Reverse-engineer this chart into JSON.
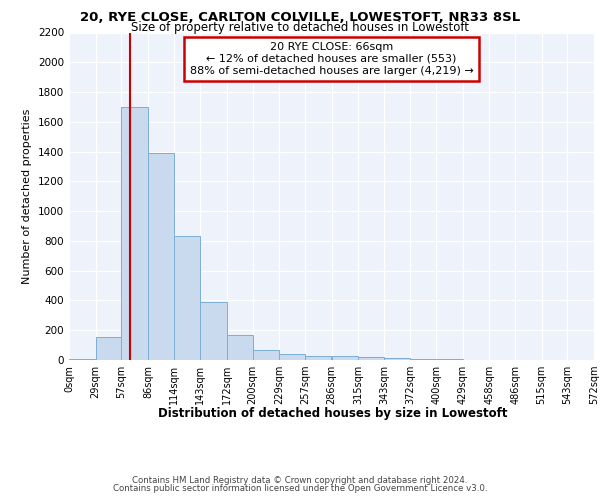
{
  "title1": "20, RYE CLOSE, CARLTON COLVILLE, LOWESTOFT, NR33 8SL",
  "title2": "Size of property relative to detached houses in Lowestoft",
  "xlabel": "Distribution of detached houses by size in Lowestoft",
  "ylabel": "Number of detached properties",
  "footer1": "Contains HM Land Registry data © Crown copyright and database right 2024.",
  "footer2": "Contains public sector information licensed under the Open Government Licence v3.0.",
  "annotation_title": "20 RYE CLOSE: 66sqm",
  "annotation_line1": "← 12% of detached houses are smaller (553)",
  "annotation_line2": "88% of semi-detached houses are larger (4,219) →",
  "property_sqm": 66,
  "bar_edges": [
    0,
    29,
    57,
    86,
    114,
    143,
    172,
    200,
    229,
    257,
    286,
    315,
    343,
    372,
    400,
    429,
    458,
    486,
    515,
    543,
    572
  ],
  "bar_heights": [
    10,
    155,
    1700,
    1390,
    830,
    390,
    165,
    65,
    40,
    25,
    25,
    20,
    15,
    10,
    5,
    3,
    2,
    1,
    1,
    1
  ],
  "bar_color": "#c9d9ee",
  "bar_edge_color": "#7bafd4",
  "vline_color": "#cc0000",
  "vline_x": 66,
  "annotation_box_color": "#cc0000",
  "background_color": "#eef2fb",
  "grid_color": "#ffffff",
  "ylim": [
    0,
    2200
  ],
  "yticks": [
    0,
    200,
    400,
    600,
    800,
    1000,
    1200,
    1400,
    1600,
    1800,
    2000,
    2200
  ],
  "tick_labels": [
    "0sqm",
    "29sqm",
    "57sqm",
    "86sqm",
    "114sqm",
    "143sqm",
    "172sqm",
    "200sqm",
    "229sqm",
    "257sqm",
    "286sqm",
    "315sqm",
    "343sqm",
    "372sqm",
    "400sqm",
    "429sqm",
    "458sqm",
    "486sqm",
    "515sqm",
    "543sqm",
    "572sqm"
  ]
}
